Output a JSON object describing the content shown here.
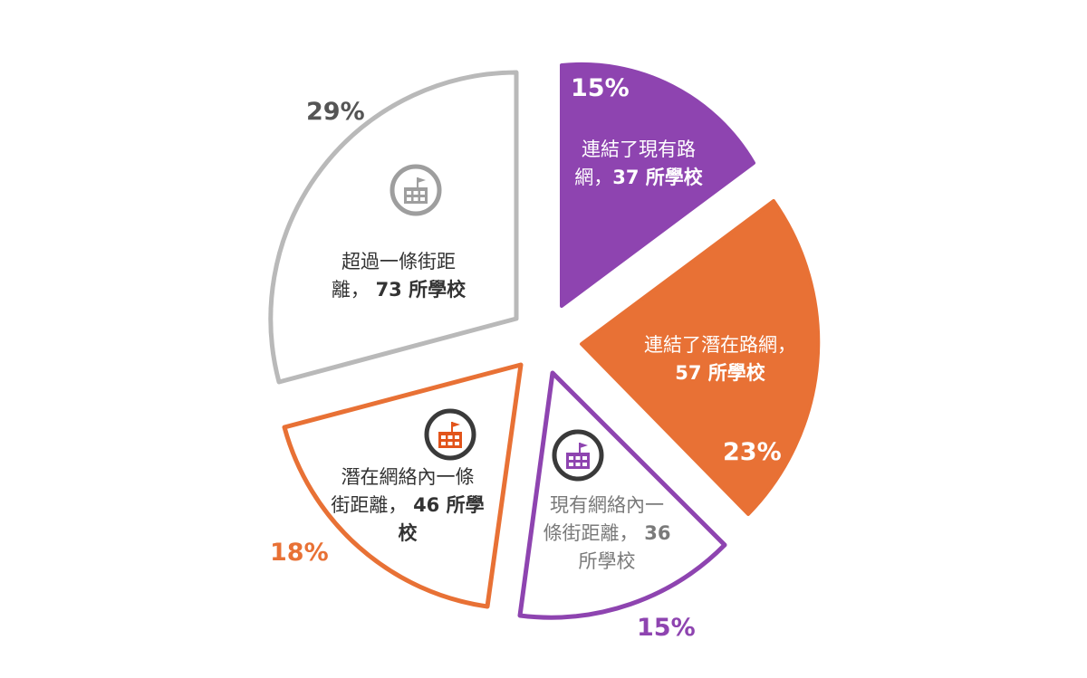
{
  "chart_data": {
    "type": "pie",
    "slices": [
      {
        "percent": 15,
        "percent_label": "15%",
        "text_a": "連結了現有路",
        "text_b": "網，",
        "count": "37 所學校",
        "color": "#8e44b0",
        "filled": true
      },
      {
        "percent": 23,
        "percent_label": "23%",
        "text_a": "連結了潛在路網，",
        "text_b": "",
        "count": "57 所學校",
        "color": "#e87135",
        "filled": true
      },
      {
        "percent": 15,
        "percent_label": "15%",
        "text_a": "現有網絡內一",
        "text_b": "條街距離，",
        "count": "36",
        "count2": "所學校",
        "color": "#8e44b0",
        "filled": false,
        "icon": "school-icon"
      },
      {
        "percent": 18,
        "percent_label": "18%",
        "text_a": "潛在網絡內一條",
        "text_b": "街距離，",
        "count": "46 所學",
        "count2": "校",
        "color": "#e87135",
        "filled": false,
        "icon": "school-icon"
      },
      {
        "percent": 29,
        "percent_label": "29%",
        "text_a": "超過一條街距",
        "text_b": "離，",
        "count": "73 所學校",
        "color": "#b9b9b9",
        "filled": false,
        "icon": "school-icon"
      }
    ],
    "colors": {
      "purple": "#8e44b0",
      "orange": "#e87135",
      "gray": "#b9b9b9",
      "dark_text": "#333333",
      "gray_text": "#555555",
      "muted_text": "#7a7a7a"
    }
  }
}
